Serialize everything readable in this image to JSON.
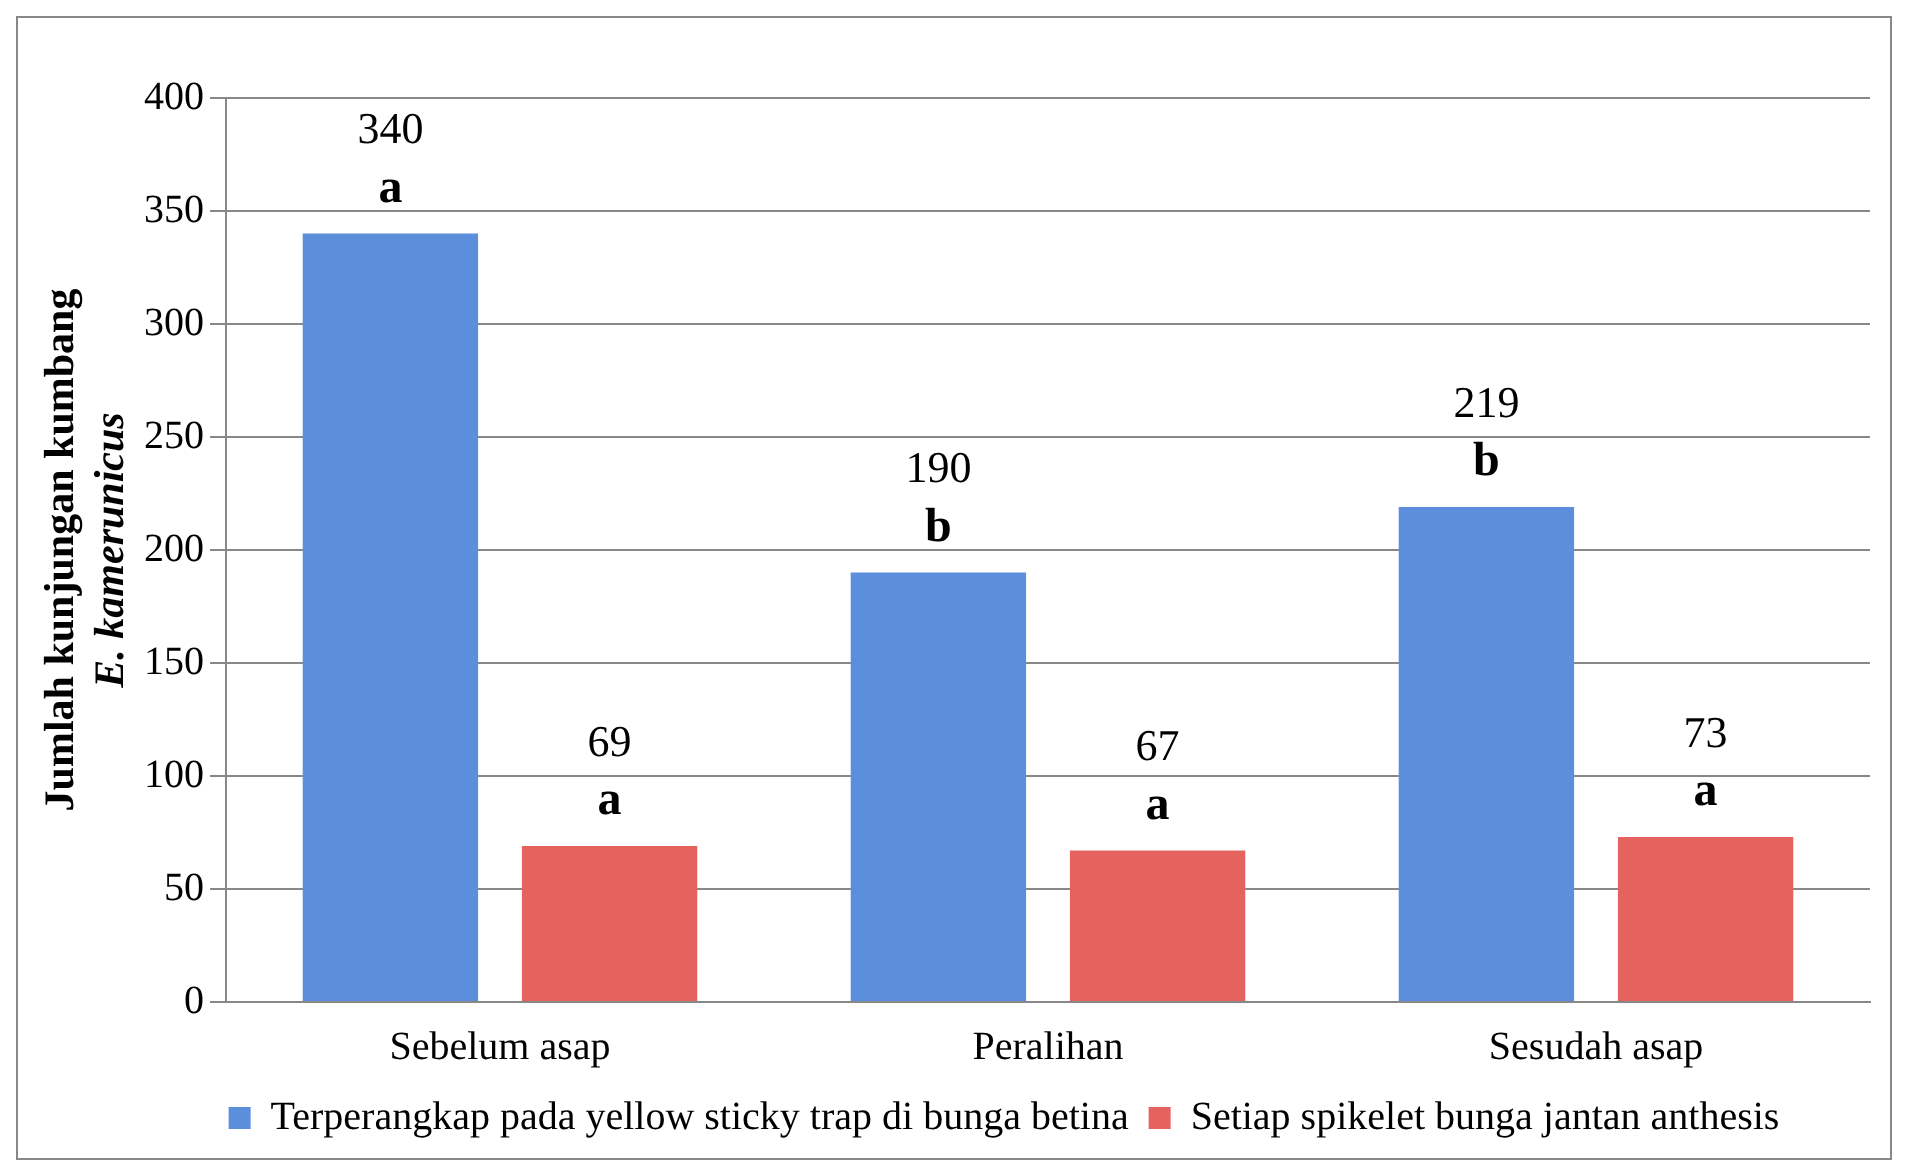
{
  "chart_data": {
    "type": "bar",
    "ylabel": "Jumlah kunjungan kumbang\nE. kamerunicus",
    "categories": [
      "Sebelum asap",
      "Peralihan",
      "Sesudah asap"
    ],
    "series": [
      {
        "name": "Terperangkap pada yellow sticky trap di bunga betina",
        "color": "#5b8fdb",
        "values": [
          340,
          190,
          219
        ]
      },
      {
        "name": "Setiap spikelet bunga jantan anthesis",
        "color": "#e6625f",
        "values": [
          69,
          67,
          73
        ]
      }
    ],
    "ylim": [
      0,
      400
    ],
    "yticks": [
      0,
      50,
      100,
      150,
      200,
      250,
      300,
      350,
      400
    ],
    "grid": "y",
    "legend": "bottom",
    "data_labels": true,
    "annotations": [
      "a",
      "a",
      "b",
      "a",
      "b",
      "a"
    ]
  }
}
